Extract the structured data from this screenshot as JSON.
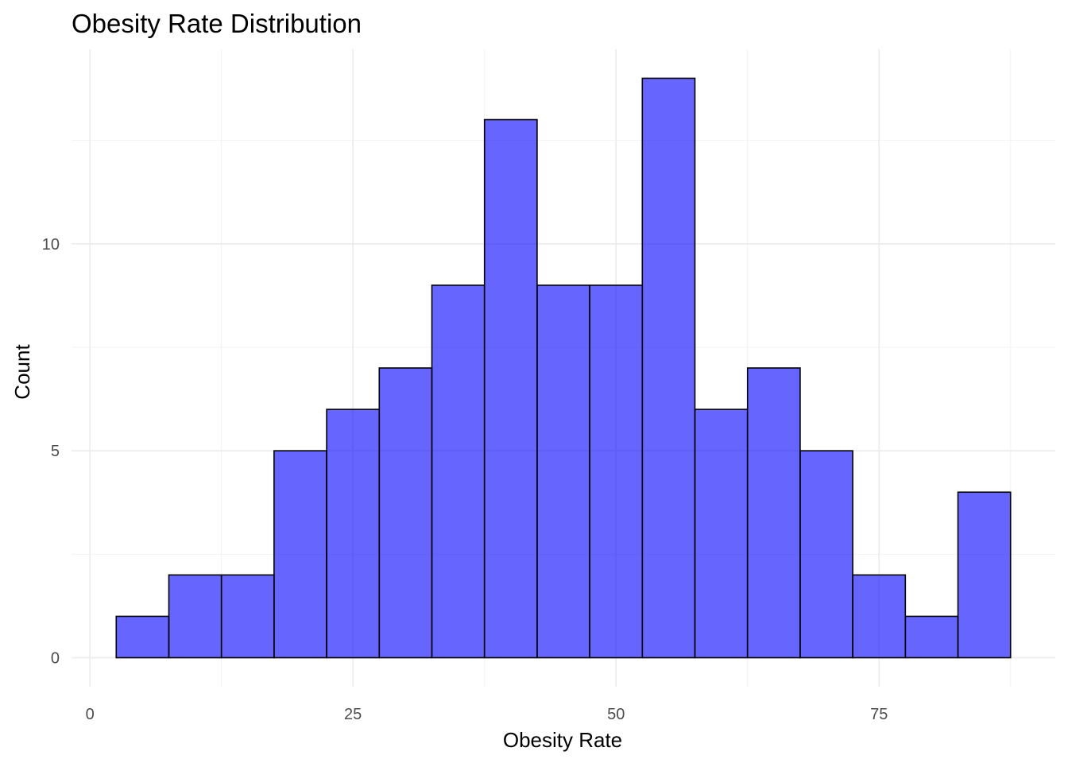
{
  "chart_data": {
    "type": "bar",
    "title": "Obesity Rate Distribution",
    "xlabel": "Obesity Rate",
    "ylabel": "Count",
    "bin_width": 5,
    "bins": [
      {
        "x_start": 2.5,
        "x_end": 7.5,
        "count": 1
      },
      {
        "x_start": 7.5,
        "x_end": 12.5,
        "count": 2
      },
      {
        "x_start": 12.5,
        "x_end": 17.5,
        "count": 2
      },
      {
        "x_start": 17.5,
        "x_end": 22.5,
        "count": 5
      },
      {
        "x_start": 22.5,
        "x_end": 27.5,
        "count": 6
      },
      {
        "x_start": 27.5,
        "x_end": 32.5,
        "count": 7
      },
      {
        "x_start": 32.5,
        "x_end": 37.5,
        "count": 9
      },
      {
        "x_start": 37.5,
        "x_end": 42.5,
        "count": 13
      },
      {
        "x_start": 42.5,
        "x_end": 47.5,
        "count": 9
      },
      {
        "x_start": 47.5,
        "x_end": 52.5,
        "count": 9
      },
      {
        "x_start": 52.5,
        "x_end": 57.5,
        "count": 14
      },
      {
        "x_start": 57.5,
        "x_end": 62.5,
        "count": 6
      },
      {
        "x_start": 62.5,
        "x_end": 67.5,
        "count": 7
      },
      {
        "x_start": 67.5,
        "x_end": 72.5,
        "count": 5
      },
      {
        "x_start": 72.5,
        "x_end": 77.5,
        "count": 2
      },
      {
        "x_start": 77.5,
        "x_end": 82.5,
        "count": 1
      },
      {
        "x_start": 82.5,
        "x_end": 87.5,
        "count": 4
      }
    ],
    "xlim": [
      -1.75,
      91.75
    ],
    "ylim": [
      -0.7,
      14.7
    ],
    "x_ticks": [
      0,
      25,
      50,
      75
    ],
    "y_ticks": [
      0,
      5,
      10
    ],
    "x_minor_ticks": [
      12.5,
      37.5,
      62.5,
      87.5
    ],
    "y_minor_ticks": [
      2.5,
      7.5,
      12.5
    ],
    "bar_fill": "#0000ff",
    "bar_fill_opacity": 0.6,
    "bar_edge": "#000000",
    "grid": true,
    "legend": "none"
  }
}
